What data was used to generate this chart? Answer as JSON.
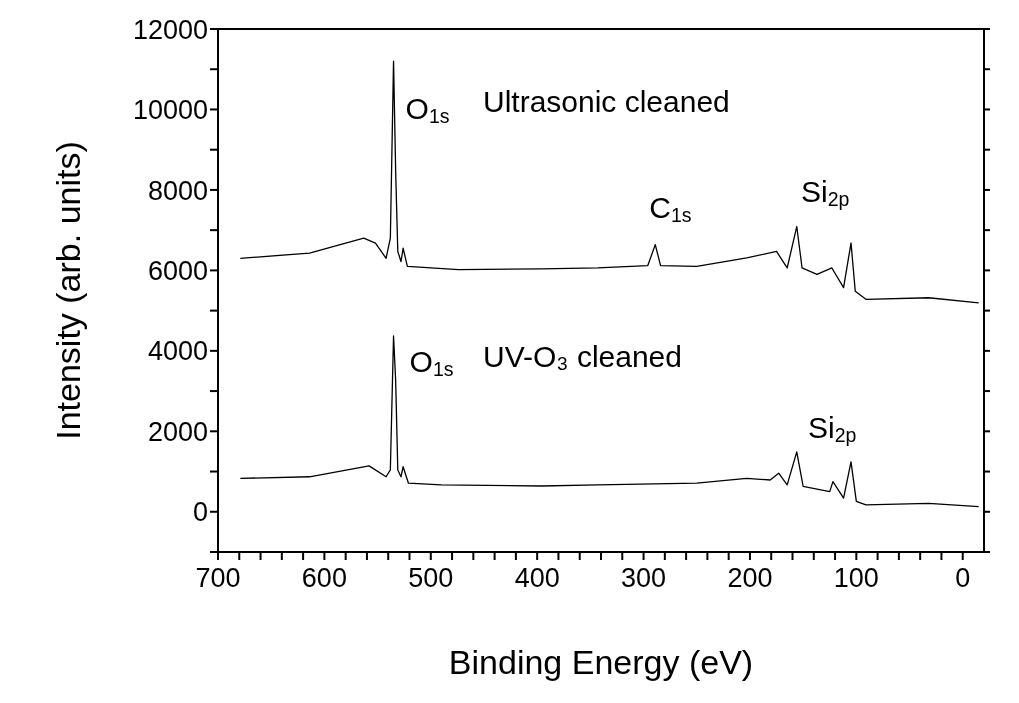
{
  "chart_data": {
    "type": "line",
    "xlabel": "Binding Energy (eV)",
    "ylabel": "Intensity (arb. units)",
    "xlim": [
      700,
      -20
    ],
    "ylim": [
      -1000,
      12000
    ],
    "xticks": [
      700,
      {
        "value": 680,
        "label": null
      },
      {
        "value": 660,
        "label": null
      },
      {
        "value": 640,
        "label": null
      },
      {
        "value": 620,
        "label": null
      },
      600,
      {
        "value": 580,
        "label": null
      },
      {
        "value": 560,
        "label": null
      },
      {
        "value": 540,
        "label": null
      },
      {
        "value": 520,
        "label": null
      },
      500,
      {
        "value": 480,
        "label": null
      },
      {
        "value": 460,
        "label": null
      },
      {
        "value": 440,
        "label": null
      },
      {
        "value": 420,
        "label": null
      },
      400,
      {
        "value": 380,
        "label": null
      },
      {
        "value": 360,
        "label": null
      },
      {
        "value": 340,
        "label": null
      },
      {
        "value": 320,
        "label": null
      },
      300,
      {
        "value": 280,
        "label": null
      },
      {
        "value": 260,
        "label": null
      },
      {
        "value": 240,
        "label": null
      },
      {
        "value": 220,
        "label": null
      },
      200,
      {
        "value": 180,
        "label": null
      },
      {
        "value": 160,
        "label": null
      },
      {
        "value": 140,
        "label": null
      },
      {
        "value": 120,
        "label": null
      },
      100,
      {
        "value": 80,
        "label": null
      },
      {
        "value": 60,
        "label": null
      },
      {
        "value": 40,
        "label": null
      },
      {
        "value": 20,
        "label": null
      },
      0
    ],
    "yticks": [
      {
        "value": -1000,
        "label": null
      },
      0,
      {
        "value": 1000,
        "label": null
      },
      2000,
      {
        "value": 3000,
        "label": null
      },
      4000,
      {
        "value": 5000,
        "label": null
      },
      6000,
      {
        "value": 7000,
        "label": null
      },
      8000,
      {
        "value": 9000,
        "label": null
      },
      10000,
      {
        "value": 11000,
        "label": null
      },
      12000
    ],
    "marker": "none",
    "line_style": "solid",
    "series": [
      {
        "color": "#000000",
        "x": [
          679,
          614,
          563,
          552,
          542,
          538,
          535,
          533,
          531,
          528,
          526,
          522,
          474,
          396,
          343,
          296,
          289,
          284,
          250,
          203,
          175,
          165,
          156,
          151,
          137,
          123,
          112,
          105,
          101,
          91,
          32,
          -15
        ],
        "values": [
          6300,
          6430,
          6800,
          6680,
          6300,
          6800,
          11200,
          8450,
          6470,
          6220,
          6550,
          6100,
          6020,
          6040,
          6060,
          6120,
          6640,
          6120,
          6100,
          6310,
          6470,
          6060,
          7090,
          6060,
          5900,
          6060,
          5570,
          6680,
          5480,
          5280,
          5320,
          5190
        ]
      },
      {
        "color": "#000000",
        "x": [
          679,
          614,
          558,
          542,
          538,
          535,
          533,
          531,
          528,
          526,
          521,
          490,
          396,
          343,
          250,
          203,
          181,
          173,
          165,
          156,
          150,
          125,
          122,
          112,
          105,
          100,
          91,
          32,
          -15
        ],
        "values": [
          830,
          870,
          1140,
          870,
          1040,
          4370,
          3260,
          1040,
          870,
          1120,
          710,
          670,
          640,
          670,
          710,
          830,
          790,
          960,
          670,
          1490,
          630,
          500,
          750,
          340,
          1240,
          260,
          170,
          210,
          130
        ]
      }
    ],
    "annotations": [
      {
        "text": "O$_{1s}$",
        "x": 535,
        "y": 11200
      },
      {
        "text": "C$_{1s}$",
        "x": 289,
        "y": 6640
      },
      {
        "text": "Si$_{2p}$",
        "x": 105,
        "y": 6680
      },
      {
        "text": "O$_{1s}$",
        "x": 535,
        "y": 4370
      },
      {
        "text": "Si$_{2p}$",
        "x": 105,
        "y": 1240
      },
      "Ultrasonic cleaned",
      "UV-O₃ cleaned"
    ]
  }
}
